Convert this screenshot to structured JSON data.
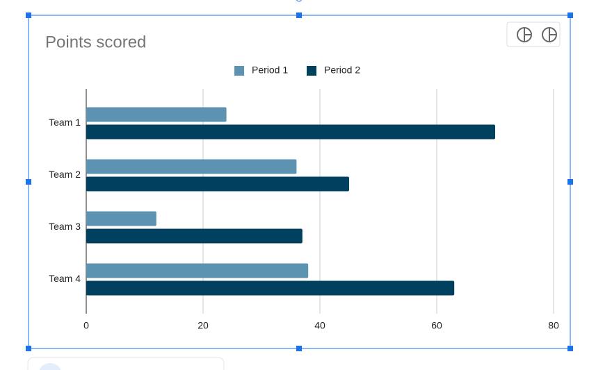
{
  "chart_data": {
    "type": "bar",
    "orientation": "horizontal",
    "title": "Points scored",
    "categories": [
      "Team 1",
      "Team 2",
      "Team 3",
      "Team 4"
    ],
    "series": [
      {
        "name": "Period 1",
        "color": "#5b93b0",
        "values": [
          24,
          36,
          12,
          38
        ]
      },
      {
        "name": "Period 2",
        "color": "#01415f",
        "values": [
          70,
          45,
          37,
          63
        ]
      }
    ],
    "xlim": [
      0,
      80
    ],
    "xticks": [
      0,
      20,
      40,
      60,
      80
    ],
    "grid": true,
    "legend": "top"
  }
}
